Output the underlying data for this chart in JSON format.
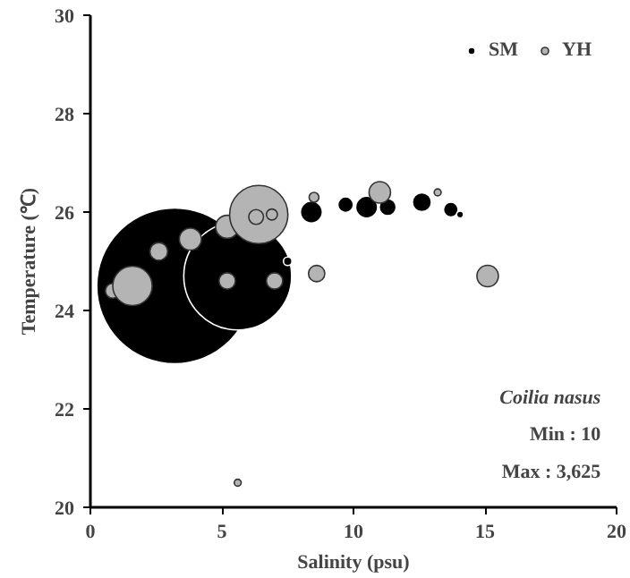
{
  "chart_data": {
    "type": "bubble",
    "xlabel": "Salinity (psu)",
    "ylabel": "Temperature (℃)",
    "xlim": [
      0,
      20
    ],
    "xticks": [
      0,
      5,
      10,
      15,
      20
    ],
    "ylim": [
      20,
      30
    ],
    "yticks": [
      20,
      22,
      24,
      26,
      28,
      30
    ],
    "grid": false,
    "legend": "top right",
    "annotations": [
      "Coilia nasus",
      "Min : 10",
      "Max : 3,625"
    ],
    "series": [
      {
        "name": "SM",
        "color": "#000000",
        "x": [
          3.2,
          5.6,
          7.5,
          8.4,
          9.7,
          10.5,
          11.3,
          12.6,
          13.7,
          14.05
        ],
        "values": [
          24.5,
          24.7,
          25.0,
          26.0,
          26.15,
          26.1,
          26.1,
          26.2,
          26.05,
          25.95
        ],
        "sizes": [
          1.0,
          0.48,
          0.003,
          0.02,
          0.01,
          0.02,
          0.012,
          0.015,
          0.009,
          0.002
        ]
      },
      {
        "name": "YH",
        "color": "#b4b4b4",
        "x": [
          0.85,
          1.6,
          2.6,
          3.8,
          5.2,
          6.4,
          6.3,
          6.9,
          5.2,
          7.0,
          8.6,
          8.5,
          11.0,
          13.2,
          15.1,
          5.6
        ],
        "values": [
          24.4,
          24.5,
          25.2,
          25.45,
          25.7,
          25.95,
          25.9,
          25.95,
          24.6,
          24.6,
          24.75,
          26.3,
          26.4,
          26.4,
          24.7,
          20.5
        ],
        "sizes": [
          0.009,
          0.064,
          0.013,
          0.02,
          0.022,
          0.14,
          0.009,
          0.005,
          0.011,
          0.011,
          0.011,
          0.004,
          0.019,
          0.002,
          0.019,
          0.002
        ]
      }
    ]
  }
}
